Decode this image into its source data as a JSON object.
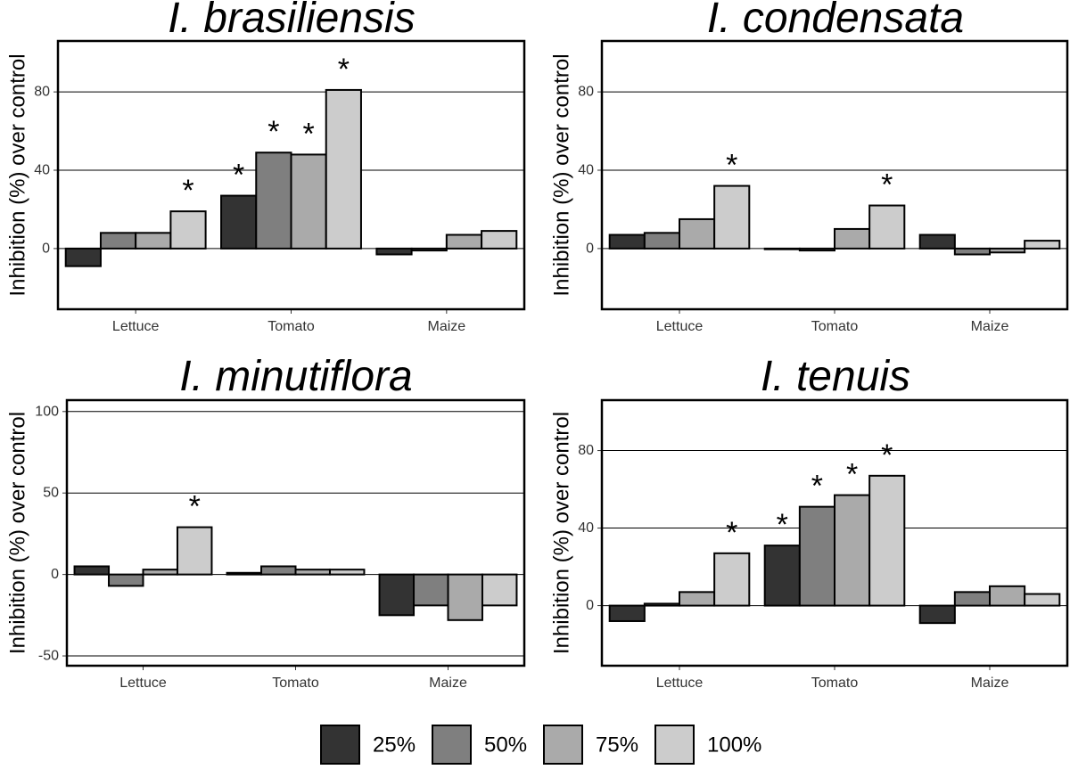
{
  "chart_data": [
    {
      "type": "bar",
      "title": "I. brasiliensis",
      "ylabel": "Inhibition (%) over control",
      "xlabel": "",
      "categories": [
        "Lettuce",
        "Tomato",
        "Maize"
      ],
      "ylim": [
        -31,
        106
      ],
      "yticks": [
        0,
        40,
        80
      ],
      "ytick_labels": [
        "0",
        "40",
        "80"
      ],
      "grid": true,
      "series": [
        {
          "name": "25%",
          "values": [
            -9,
            27,
            -3
          ]
        },
        {
          "name": "50%",
          "values": [
            8,
            49,
            -1
          ]
        },
        {
          "name": "75%",
          "values": [
            8,
            48,
            7
          ]
        },
        {
          "name": "100%",
          "values": [
            19,
            81,
            9
          ]
        }
      ],
      "significance": [
        [
          false,
          true,
          false
        ],
        [
          false,
          true,
          false
        ],
        [
          false,
          true,
          false
        ],
        [
          true,
          true,
          false
        ]
      ],
      "annotation": "*"
    },
    {
      "type": "bar",
      "title": "I. condensata",
      "ylabel": "Inhibition (%) over control",
      "xlabel": "",
      "categories": [
        "Lettuce",
        "Tomato",
        "Maize"
      ],
      "ylim": [
        -31,
        106
      ],
      "yticks": [
        0,
        40,
        80
      ],
      "ytick_labels": [
        "0",
        "40",
        "80"
      ],
      "grid": true,
      "series": [
        {
          "name": "25%",
          "values": [
            7,
            0,
            7
          ]
        },
        {
          "name": "50%",
          "values": [
            8,
            -1,
            -3
          ]
        },
        {
          "name": "75%",
          "values": [
            15,
            10,
            -2
          ]
        },
        {
          "name": "100%",
          "values": [
            32,
            22,
            4
          ]
        }
      ],
      "significance": [
        [
          false,
          false,
          false
        ],
        [
          false,
          false,
          false
        ],
        [
          false,
          false,
          false
        ],
        [
          true,
          true,
          false
        ]
      ],
      "annotation": "*"
    },
    {
      "type": "bar",
      "title": "I. minutiflora",
      "ylabel": "Inhibition (%) over control",
      "xlabel": "",
      "categories": [
        "Lettuce",
        "Tomato",
        "Maize"
      ],
      "ylim": [
        -56,
        107
      ],
      "yticks": [
        -50,
        0,
        50,
        100
      ],
      "ytick_labels": [
        "-50",
        "0",
        "50",
        "100"
      ],
      "grid": true,
      "series": [
        {
          "name": "25%",
          "values": [
            5,
            1,
            -25
          ]
        },
        {
          "name": "50%",
          "values": [
            -7,
            5,
            -19
          ]
        },
        {
          "name": "75%",
          "values": [
            3,
            3,
            -28
          ]
        },
        {
          "name": "100%",
          "values": [
            29,
            3,
            -19
          ]
        }
      ],
      "significance": [
        [
          false,
          false,
          false
        ],
        [
          false,
          false,
          false
        ],
        [
          false,
          false,
          false
        ],
        [
          true,
          false,
          false
        ]
      ],
      "annotation": "*"
    },
    {
      "type": "bar",
      "title": "I. tenuis",
      "ylabel": "Inhibition (%) over control",
      "xlabel": "",
      "categories": [
        "Lettuce",
        "Tomato",
        "Maize"
      ],
      "ylim": [
        -31,
        106
      ],
      "yticks": [
        0,
        40,
        80
      ],
      "ytick_labels": [
        "0",
        "40",
        "80"
      ],
      "grid": true,
      "series": [
        {
          "name": "25%",
          "values": [
            -8,
            31,
            -9
          ]
        },
        {
          "name": "50%",
          "values": [
            1,
            51,
            7
          ]
        },
        {
          "name": "75%",
          "values": [
            7,
            57,
            10
          ]
        },
        {
          "name": "100%",
          "values": [
            27,
            67,
            6
          ]
        }
      ],
      "significance": [
        [
          false,
          true,
          false
        ],
        [
          false,
          true,
          false
        ],
        [
          false,
          true,
          false
        ],
        [
          true,
          true,
          false
        ]
      ],
      "annotation": "*"
    }
  ],
  "legend": {
    "items": [
      {
        "label": "25%",
        "color": "#333333"
      },
      {
        "label": "50%",
        "color": "#7f7f7f"
      },
      {
        "label": "75%",
        "color": "#aaaaaa"
      },
      {
        "label": "100%",
        "color": "#cccccc"
      }
    ],
    "placement": "bottom"
  }
}
